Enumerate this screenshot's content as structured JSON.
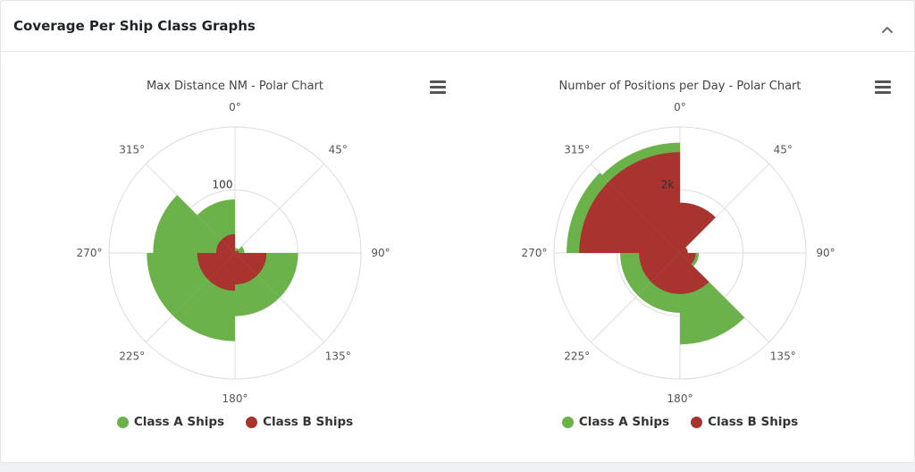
{
  "panel": {
    "title": "Coverage Per Ship Class Graphs",
    "collapse_icon": "chevron-up-icon"
  },
  "colors": {
    "class_a": "#6cb24a",
    "class_b": "#a8332f",
    "grid": "#dcdcdc",
    "axis_text": "#555555"
  },
  "legend": [
    {
      "label": "Class A Ships",
      "color": "#6cb24a"
    },
    {
      "label": "Class B Ships",
      "color": "#a8332f"
    }
  ],
  "chart_data": [
    {
      "type": "polar-column",
      "title": "Max Distance NM - Polar Chart",
      "angles": [
        "0°",
        "45°",
        "90°",
        "135°",
        "180°",
        "225°",
        "270°",
        "315°"
      ],
      "radial_tick_label": "100",
      "radial_tick_value": 100,
      "rmax": 200,
      "series": [
        {
          "name": "Class A Ships",
          "values": [
            8,
            15,
            100,
            100,
            140,
            140,
            130,
            85
          ]
        },
        {
          "name": "Class B Ships",
          "values": [
            3,
            6,
            50,
            50,
            60,
            60,
            30,
            30
          ]
        }
      ]
    },
    {
      "type": "polar-column",
      "title": "Number of Positions per Day - Polar Chart",
      "angles": [
        "0°",
        "45°",
        "90°",
        "135°",
        "180°",
        "225°",
        "270°",
        "315°"
      ],
      "radial_tick_label": "2k",
      "radial_tick_value": 2000,
      "rmax": 4000,
      "series": [
        {
          "name": "Class A Ships",
          "values": [
            1500,
            200,
            600,
            2900,
            1900,
            1900,
            3600,
            3500
          ]
        },
        {
          "name": "Class B Ships",
          "values": [
            1600,
            250,
            500,
            1300,
            1300,
            1300,
            3200,
            3200
          ]
        }
      ]
    }
  ]
}
